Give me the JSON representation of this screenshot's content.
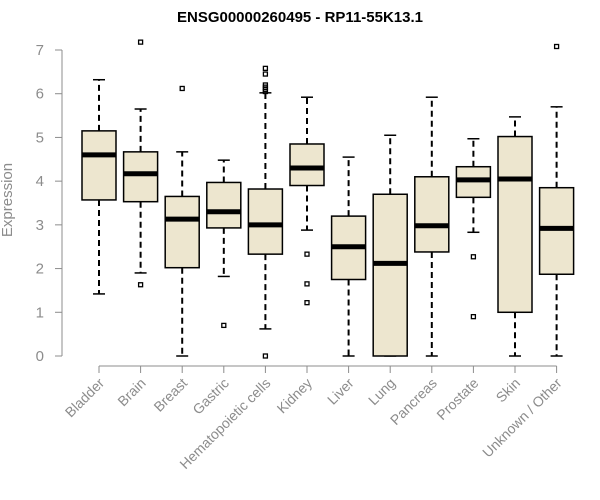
{
  "chart_data": {
    "type": "boxplot",
    "title": "ENSG00000260495 - RP11-55K13.1",
    "xlabel": "",
    "ylabel": "Expression",
    "ylim": [
      0,
      7
    ],
    "yticks": [
      0,
      1,
      2,
      3,
      4,
      5,
      6,
      7
    ],
    "box_fill": "#ede6cf",
    "axis_color": "#8c8c8c",
    "categories": [
      "Bladder",
      "Brain",
      "Breast",
      "Gastric",
      "Hematopoietic cells",
      "Kidney",
      "Liver",
      "Lung",
      "Pancreas",
      "Prostate",
      "Skin",
      "Unknown / Other"
    ],
    "boxes": [
      {
        "name": "Bladder",
        "whisker_low": 1.42,
        "q1": 3.57,
        "median": 4.6,
        "q3": 5.15,
        "whisker_high": 6.32,
        "outliers": []
      },
      {
        "name": "Brain",
        "whisker_low": 1.9,
        "q1": 3.53,
        "median": 4.17,
        "q3": 4.67,
        "whisker_high": 5.65,
        "outliers": [
          1.63,
          7.18
        ]
      },
      {
        "name": "Breast",
        "whisker_low": 0,
        "q1": 2.02,
        "median": 3.13,
        "q3": 3.65,
        "whisker_high": 4.67,
        "outliers": [
          6.12
        ]
      },
      {
        "name": "Gastric",
        "whisker_low": 1.82,
        "q1": 2.93,
        "median": 3.3,
        "q3": 3.97,
        "whisker_high": 4.48,
        "outliers": [
          0.7
        ]
      },
      {
        "name": "Hematopoietic cells",
        "whisker_low": 0.62,
        "q1": 2.33,
        "median": 3.0,
        "q3": 3.82,
        "whisker_high": 6.02,
        "outliers": [
          0,
          6.05,
          6.1,
          6.15,
          6.2,
          6.45,
          6.58
        ]
      },
      {
        "name": "Kidney",
        "whisker_low": 2.88,
        "q1": 3.9,
        "median": 4.3,
        "q3": 4.85,
        "whisker_high": 5.92,
        "outliers": [
          1.22,
          1.65,
          2.33
        ]
      },
      {
        "name": "Liver",
        "whisker_low": 0,
        "q1": 1.75,
        "median": 2.5,
        "q3": 3.2,
        "whisker_high": 4.55,
        "outliers": []
      },
      {
        "name": "Lung",
        "whisker_low": 0,
        "q1": 0,
        "median": 2.12,
        "q3": 3.7,
        "whisker_high": 5.05,
        "outliers": []
      },
      {
        "name": "Pancreas",
        "whisker_low": 0,
        "q1": 2.38,
        "median": 2.98,
        "q3": 4.1,
        "whisker_high": 5.92,
        "outliers": []
      },
      {
        "name": "Prostate",
        "whisker_low": 2.83,
        "q1": 3.63,
        "median": 4.03,
        "q3": 4.33,
        "whisker_high": 4.97,
        "outliers": [
          0.9,
          2.27
        ]
      },
      {
        "name": "Skin",
        "whisker_low": 0,
        "q1": 1.0,
        "median": 4.05,
        "q3": 5.02,
        "whisker_high": 5.47,
        "outliers": []
      },
      {
        "name": "Unknown / Other",
        "whisker_low": 0,
        "q1": 1.87,
        "median": 2.92,
        "q3": 3.85,
        "whisker_high": 5.7,
        "outliers": [
          7.08
        ]
      }
    ]
  }
}
